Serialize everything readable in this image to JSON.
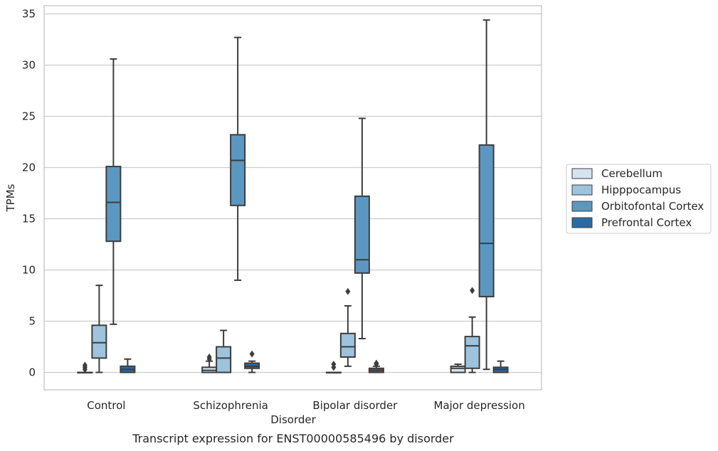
{
  "chart_data": {
    "type": "box",
    "title": "",
    "caption": "Transcript expression for ENST00000585496 by disorder",
    "xlabel": "Disorder",
    "ylabel": "TPMs",
    "ylim": [
      -1.7,
      35.8
    ],
    "yticks": [
      0,
      5,
      10,
      15,
      20,
      25,
      30,
      35
    ],
    "grid": "horizontal",
    "legend_position": "right",
    "categories": [
      "Control",
      "Schizophrenia",
      "Bipolar disorder",
      "Major depression"
    ],
    "series": [
      {
        "name": "Cerebellum",
        "color": "#d5e3f0",
        "boxes": [
          {
            "whislo": 0,
            "q1": 0,
            "med": 0,
            "q3": 0,
            "whishi": 0,
            "fliers": [
              0.3,
              0.5,
              0.7
            ]
          },
          {
            "whislo": 0,
            "q1": 0,
            "med": 0.2,
            "q3": 0.5,
            "whishi": 1.1,
            "fliers": [
              1.3,
              1.5
            ]
          },
          {
            "whislo": 0,
            "q1": 0,
            "med": 0,
            "q3": 0,
            "whishi": 0,
            "fliers": [
              0.5,
              0.8
            ]
          },
          {
            "whislo": 0,
            "q1": 0,
            "med": 0.4,
            "q3": 0.6,
            "whishi": 0.8,
            "fliers": []
          }
        ]
      },
      {
        "name": "Hipppocampus",
        "color": "#9dc3dd",
        "boxes": [
          {
            "whislo": 0,
            "q1": 1.4,
            "med": 2.9,
            "q3": 4.6,
            "whishi": 8.5,
            "fliers": []
          },
          {
            "whislo": 0,
            "q1": 0,
            "med": 1.4,
            "q3": 2.5,
            "whishi": 4.1,
            "fliers": []
          },
          {
            "whislo": 0.6,
            "q1": 1.5,
            "med": 2.5,
            "q3": 3.8,
            "whishi": 6.5,
            "fliers": [
              7.9
            ]
          },
          {
            "whislo": 0,
            "q1": 0.4,
            "med": 2.6,
            "q3": 3.5,
            "whishi": 5.4,
            "fliers": [
              8.0
            ]
          }
        ]
      },
      {
        "name": "Orbitofontal Cortex",
        "color": "#5b97c0",
        "boxes": [
          {
            "whislo": 4.7,
            "q1": 12.8,
            "med": 16.6,
            "q3": 20.1,
            "whishi": 30.6,
            "fliers": []
          },
          {
            "whislo": 9.0,
            "q1": 16.3,
            "med": 20.7,
            "q3": 23.2,
            "whishi": 32.7,
            "fliers": []
          },
          {
            "whislo": 3.3,
            "q1": 9.7,
            "med": 11.0,
            "q3": 17.2,
            "whishi": 24.8,
            "fliers": []
          },
          {
            "whislo": 0.3,
            "q1": 7.4,
            "med": 12.6,
            "q3": 22.2,
            "whishi": 34.4,
            "fliers": []
          }
        ]
      },
      {
        "name": "Prefrontal Cortex",
        "color": "#2c6aa6",
        "boxes": [
          {
            "whislo": 0,
            "q1": 0,
            "med": 0.3,
            "q3": 0.6,
            "whishi": 1.3,
            "fliers": []
          },
          {
            "whislo": 0,
            "q1": 0.4,
            "med": 0.6,
            "q3": 0.9,
            "whishi": 1.1,
            "fliers": [
              1.8
            ]
          },
          {
            "whislo": 0,
            "q1": 0,
            "med": 0.2,
            "q3": 0.4,
            "whishi": 0.6,
            "fliers": [
              0.8,
              0.9
            ]
          },
          {
            "whislo": 0,
            "q1": 0,
            "med": 0.3,
            "q3": 0.5,
            "whishi": 1.1,
            "fliers": []
          }
        ]
      }
    ]
  }
}
